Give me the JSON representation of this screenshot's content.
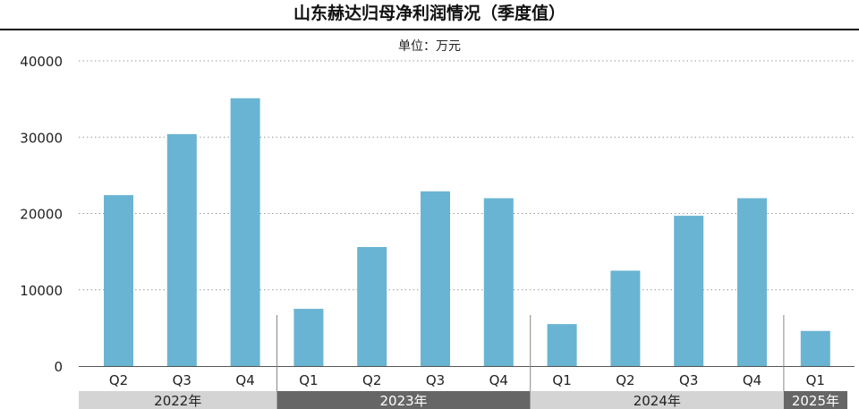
{
  "title": "山东赫达归母净利润情况（季度值）",
  "unit": "单位：万元",
  "chart_data": {
    "type": "bar",
    "title": "山东赫达归母净利润情况（季度值）",
    "unit": "单位：万元",
    "categories": [
      "Q2",
      "Q3",
      "Q4",
      "Q1",
      "Q2",
      "Q3",
      "Q4",
      "Q1",
      "Q2",
      "Q3",
      "Q4",
      "Q1"
    ],
    "values": [
      22400,
      30400,
      35100,
      7500,
      15600,
      22900,
      22000,
      5500,
      12500,
      19700,
      22000,
      4600
    ],
    "yticks": [
      0,
      10000,
      20000,
      30000,
      40000
    ],
    "ylim": [
      0,
      40000
    ],
    "grid": true,
    "bar_color": "#6ab4d3",
    "year_groups": [
      {
        "label": "2022年",
        "count": 3,
        "bg": "#d4d4d4",
        "fg": "#222222"
      },
      {
        "label": "2023年",
        "count": 4,
        "bg": "#666666",
        "fg": "#ffffff"
      },
      {
        "label": "2024年",
        "count": 4,
        "bg": "#d4d4d4",
        "fg": "#222222"
      },
      {
        "label": "2025年",
        "count": 1,
        "bg": "#666666",
        "fg": "#ffffff"
      }
    ]
  }
}
